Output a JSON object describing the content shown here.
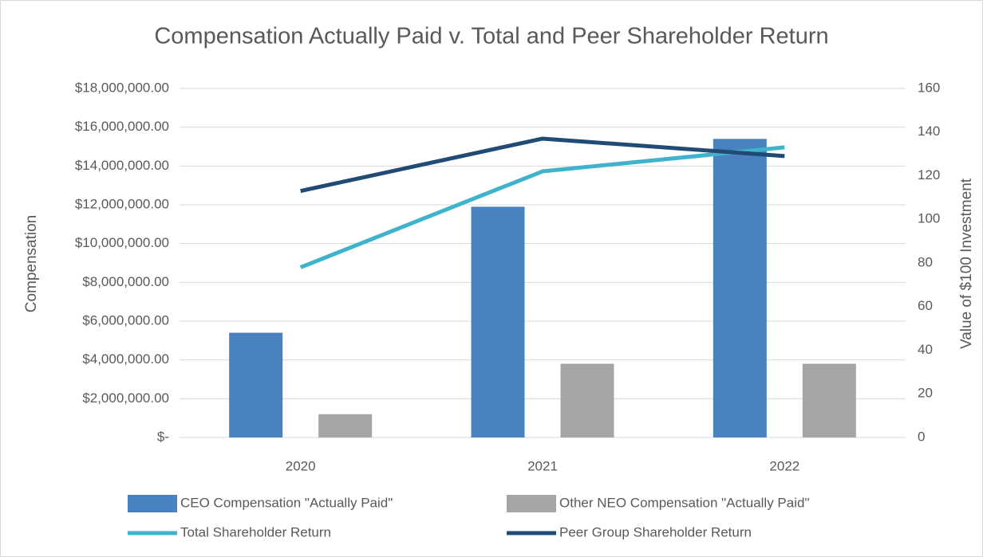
{
  "chart_data": {
    "type": "bar-line",
    "title": "Compensation Actually Paid v. Total and Peer Shareholder Return",
    "y_label": "Compensation",
    "y2_label": "Value of $100 Investment",
    "categories": [
      "2020",
      "2021",
      "2022"
    ],
    "series": [
      {
        "name": "CEO Compensation \"Actually Paid\"",
        "type": "bar",
        "color": "#4a81c0",
        "values": [
          5400000,
          11900000,
          15400000
        ]
      },
      {
        "name": "Other NEO Compensation \"Actually Paid\"",
        "type": "bar",
        "color": "#a5a5a5",
        "values": [
          1200000,
          3800000,
          3800000
        ]
      },
      {
        "name": "Total Shareholder Return",
        "type": "line",
        "axis": "y2",
        "color": "#3fb3cc",
        "values": [
          78,
          122,
          133
        ]
      },
      {
        "name": "Peer Group Shareholder Return",
        "type": "line",
        "axis": "y2",
        "color": "#1f4b74",
        "values": [
          113,
          137,
          129
        ]
      }
    ],
    "ylim": [
      0,
      18000000
    ],
    "yticks": [
      {
        "value": 0,
        "label": "$-"
      },
      {
        "value": 2000000,
        "label": "$2,000,000.00"
      },
      {
        "value": 4000000,
        "label": "$4,000,000.00"
      },
      {
        "value": 6000000,
        "label": "$6,000,000.00"
      },
      {
        "value": 8000000,
        "label": "$8,000,000.00"
      },
      {
        "value": 10000000,
        "label": "$10,000,000.00"
      },
      {
        "value": 12000000,
        "label": "$12,000,000.00"
      },
      {
        "value": 14000000,
        "label": "$14,000,000.00"
      },
      {
        "value": 16000000,
        "label": "$16,000,000.00"
      },
      {
        "value": 18000000,
        "label": "$18,000,000.00"
      }
    ],
    "y2lim": [
      0,
      160
    ],
    "y2ticks": [
      0,
      20,
      40,
      60,
      80,
      100,
      120,
      140,
      160
    ],
    "grid": true,
    "legend": "bottom"
  }
}
